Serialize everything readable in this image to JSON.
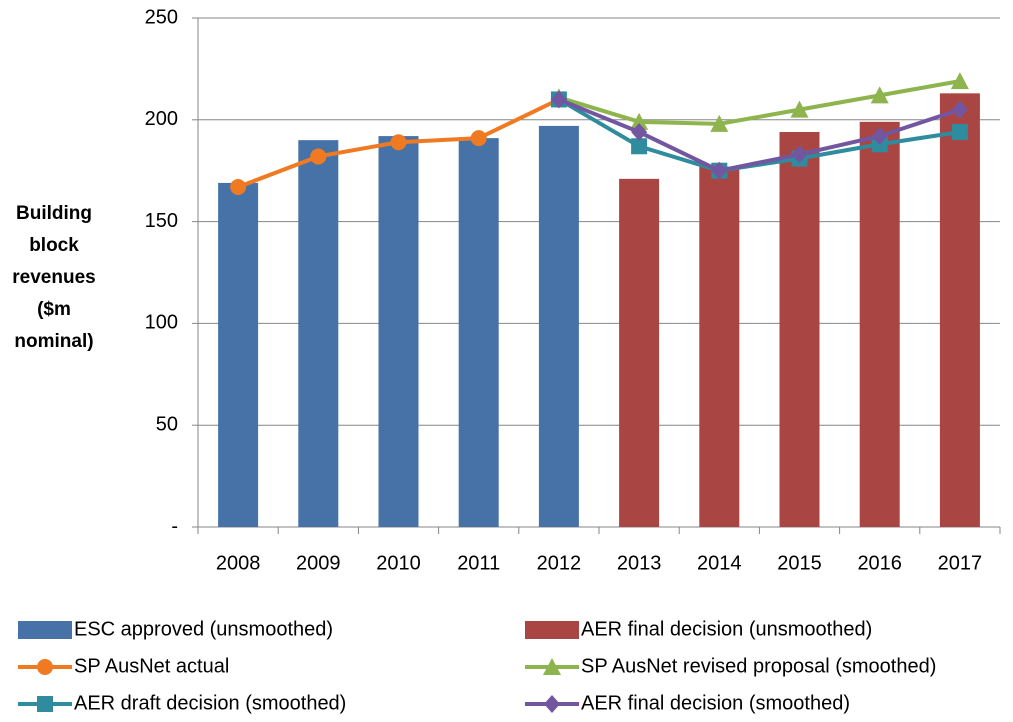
{
  "chart_data": {
    "type": "bar_line",
    "y_label": "Building block revenues ($m nominal)",
    "categories": [
      "2008",
      "2009",
      "2010",
      "2011",
      "2012",
      "2013",
      "2014",
      "2015",
      "2016",
      "2017"
    ],
    "series": [
      {
        "name": "ESC approved (unsmoothed)",
        "type": "bar",
        "color": "#4672a8",
        "values": [
          169,
          190,
          192,
          191,
          197,
          null,
          null,
          null,
          null,
          null
        ]
      },
      {
        "name": "AER final decision (unsmoothed)",
        "type": "bar",
        "color": "#a94543",
        "values": [
          null,
          null,
          null,
          null,
          null,
          171,
          177,
          194,
          199,
          213
        ]
      },
      {
        "name": "SP AusNet actual",
        "type": "line",
        "marker": "circle",
        "color": "#f07a22",
        "values": [
          167,
          182,
          189,
          191,
          210,
          null,
          null,
          null,
          null,
          null
        ]
      },
      {
        "name": "SP AusNet revised proposal (smoothed)",
        "type": "line",
        "marker": "triangle",
        "color": "#8db44d",
        "values": [
          null,
          null,
          null,
          null,
          211,
          199,
          198,
          205,
          212,
          219
        ]
      },
      {
        "name": "AER draft decision (smoothed)",
        "type": "line",
        "marker": "square",
        "color": "#2f8c9e",
        "values": [
          null,
          null,
          null,
          null,
          210,
          187,
          175,
          181,
          188,
          194
        ]
      },
      {
        "name": "AER final decision (smoothed)",
        "type": "line",
        "marker": "diamond",
        "color": "#7356a0",
        "values": [
          null,
          null,
          null,
          null,
          210,
          194,
          175,
          183,
          192,
          205
        ]
      }
    ],
    "ylim": [
      0,
      250
    ],
    "yticks": [
      {
        "value": 0,
        "label": "-"
      },
      50,
      100,
      150,
      200,
      250
    ],
    "grid": true
  }
}
